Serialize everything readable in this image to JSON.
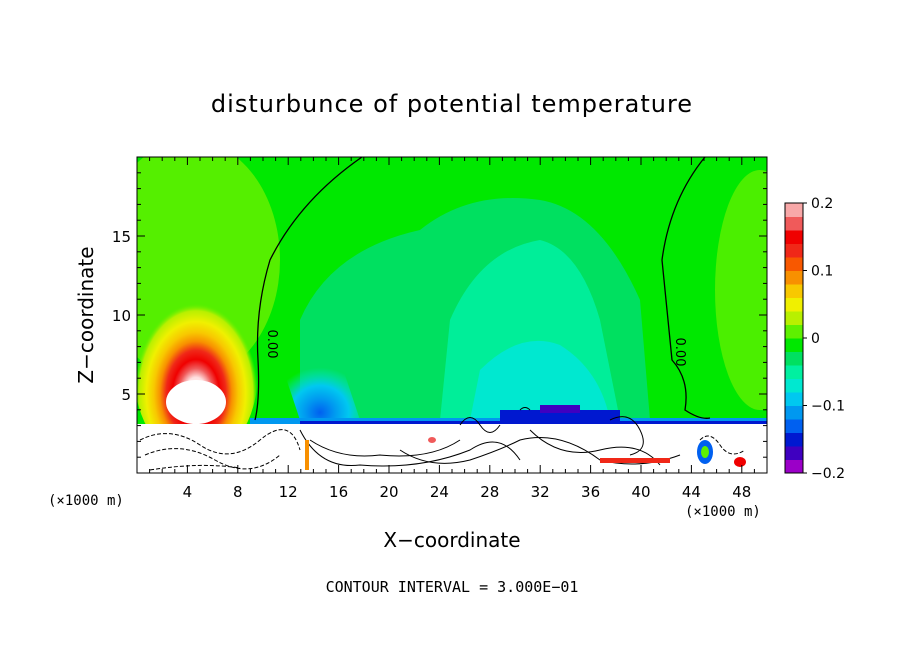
{
  "chart_data": {
    "type": "heatmap",
    "title": "disturbunce of potential temperature",
    "xlabel": "X−coordinate",
    "ylabel": "Z−coordinate",
    "x_unit_left": "(×1000 m)",
    "x_unit_right": "(×1000 m)",
    "xlim": [
      0,
      50
    ],
    "ylim": [
      0,
      20
    ],
    "x_ticks": [
      4,
      8,
      12,
      16,
      20,
      24,
      28,
      32,
      36,
      40,
      44,
      48
    ],
    "x_tick_labels": [
      "4",
      "8",
      "12",
      "16",
      "20",
      "24",
      "28",
      "32",
      "36",
      "40",
      "44",
      "48"
    ],
    "y_ticks": [
      5,
      10,
      15
    ],
    "y_tick_labels": [
      "5",
      "10",
      "15"
    ],
    "colorbar": {
      "min": -0.2,
      "max": 0.2,
      "ticks": [
        0.2,
        0.1,
        0,
        -0.1,
        -0.2
      ],
      "tick_labels": [
        "0.2",
        "0.1",
        "0",
        "−0.1",
        "−0.2"
      ],
      "colors": [
        "#9b00c8",
        "#3f00c0",
        "#0018d0",
        "#0060f0",
        "#0098f0",
        "#00c8f0",
        "#00e8d0",
        "#00f0a0",
        "#00e060",
        "#00e800",
        "#5ef000",
        "#b8f000",
        "#f0f000",
        "#f8c800",
        "#f89000",
        "#f85800",
        "#f02818",
        "#f00000",
        "#f05a5a",
        "#f8a8a8"
      ]
    },
    "contour_labels": [
      "0.00",
      "0.00"
    ],
    "contour_interval_label": "CONTOUR INTERVAL = 3.000E−01",
    "features": [
      {
        "name": "warm anomaly",
        "x": 4.5,
        "z": 4.5,
        "value": 0.2
      },
      {
        "name": "cool band near z=3",
        "x_range": [
          10,
          50
        ],
        "z": 3.2,
        "value": -0.15
      },
      {
        "name": "mid-level cool region",
        "x_range": [
          24,
          40
        ],
        "z_range": [
          4,
          15
        ],
        "value": -0.05
      }
    ]
  }
}
